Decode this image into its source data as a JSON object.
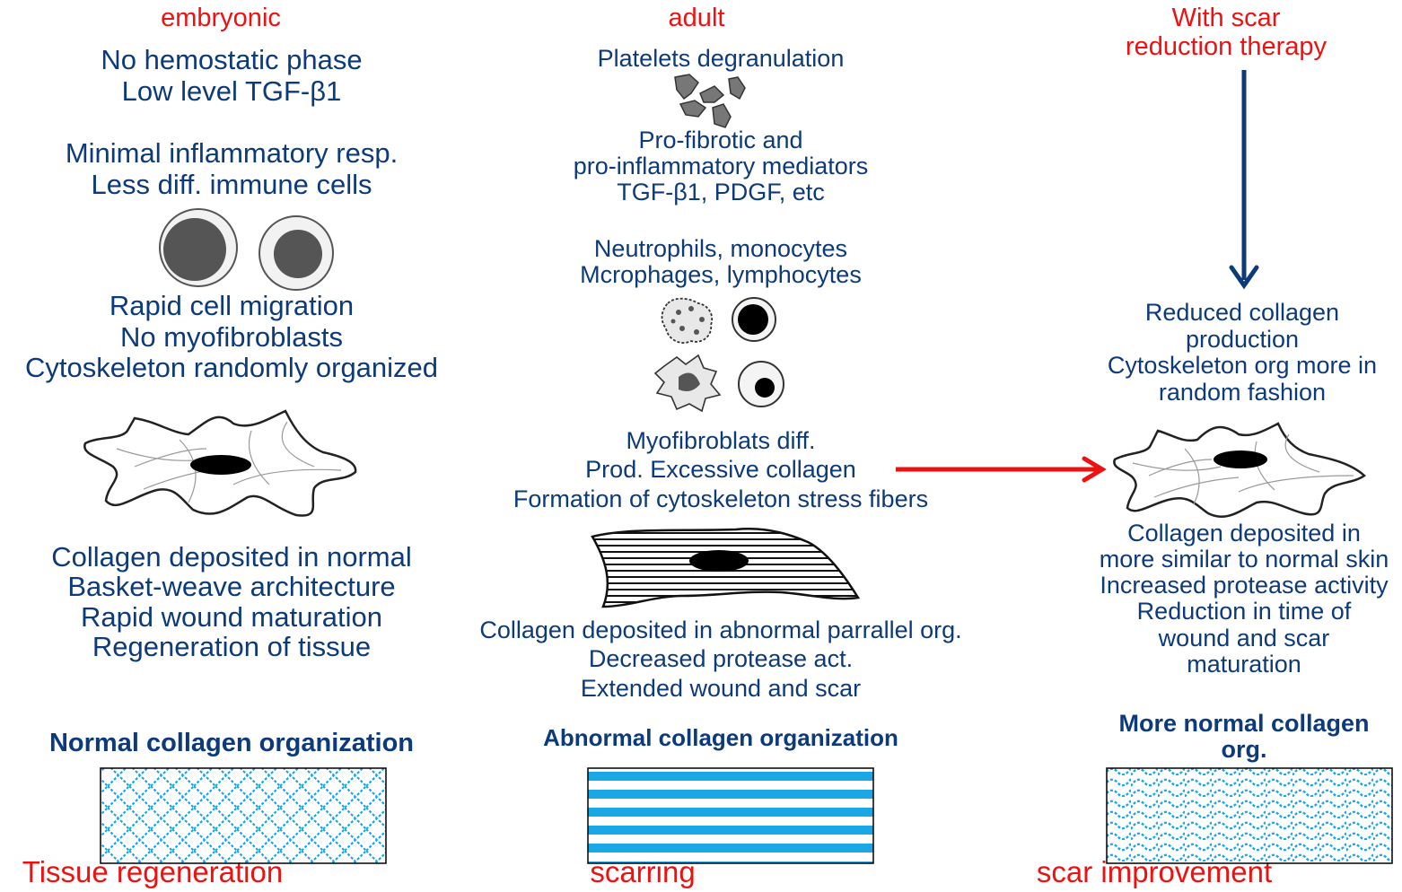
{
  "columns": {
    "embryonic": {
      "heading": "embryonic",
      "phase_text": "No hemostatic phase\nLow level TGF-β1",
      "inflam_text": "Minimal inflammatory resp.\nLess diff. immune cells",
      "migration_text": "Rapid cell migration\nNo myofibroblasts\nCytoskeleton randomly organized",
      "collagen_text": "Collagen deposited in normal\nBasket-weave architecture\nRapid wound maturation\nRegeneration of tissue",
      "org_label": "Normal collagen organization",
      "outcome": "Tissue regeneration"
    },
    "adult": {
      "heading": "adult",
      "platelets_text": "Platelets degranulation",
      "mediators_text": "Pro-fibrotic and\npro-inflammatory mediators\nTGF-β1, PDGF, etc",
      "cells_text": "Neutrophils, monocytes\nMcrophages, lymphocytes",
      "myofib_text": "Myofibroblats diff.\nProd. Excessive collagen\nFormation of cytoskeleton stress fibers",
      "collagen_text": "Collagen deposited in abnormal parrallel org.\nDecreased protease act.\nExtended wound and scar",
      "org_label": "Abnormal collagen organization",
      "outcome": "scarring"
    },
    "therapy": {
      "heading": "With scar\nreduction therapy",
      "reduced_text": "Reduced collagen\nproduction\nCytoskeleton org more in\nrandom fashion",
      "collagen_text": "Collagen deposited in\nmore similar to normal skin\nIncreased protease activity\nReduction in time of\nwound and scar\nmaturation",
      "org_label": "More normal collagen\norg.",
      "outcome": "scar improvement"
    }
  },
  "colors": {
    "text_blue": "#0d3a7a",
    "heading_red": "#ee1111",
    "arrow_red": "#ee1111",
    "arrow_blue": "#0d3a7a",
    "collagen_cyan": "#1aa7e6"
  }
}
